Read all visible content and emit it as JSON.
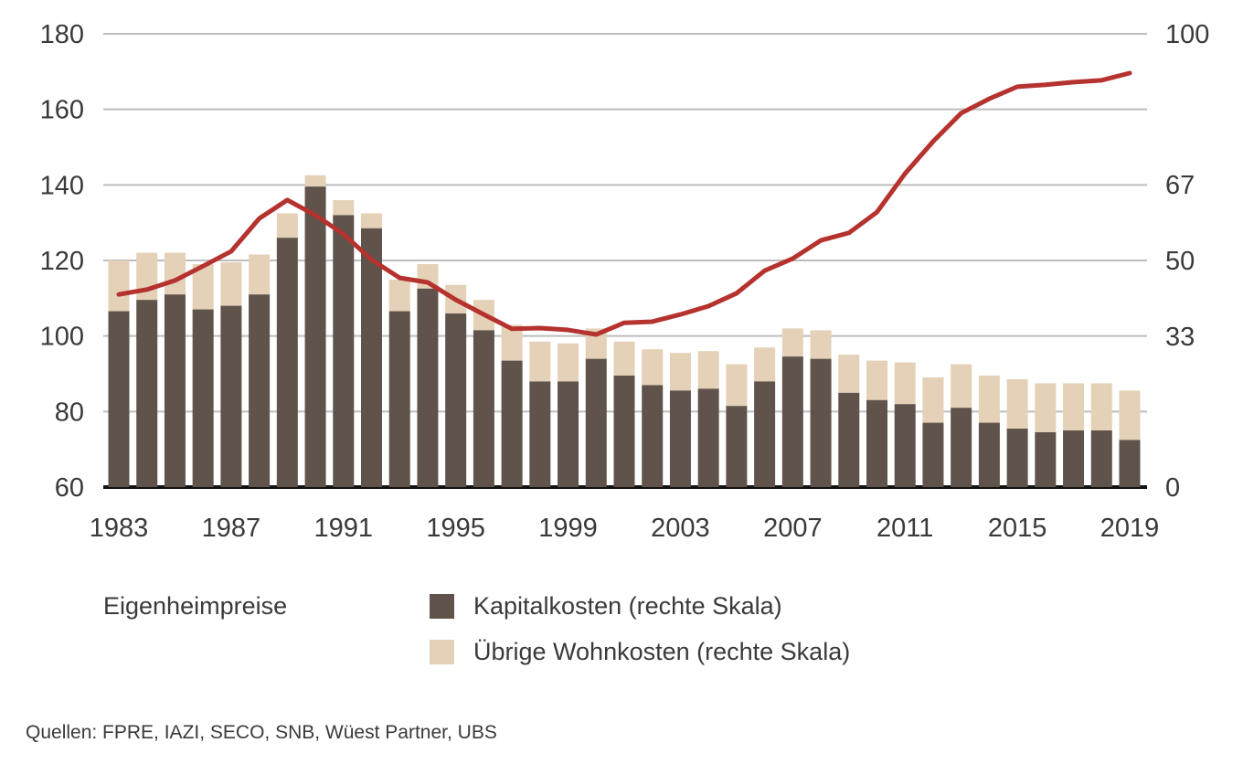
{
  "chart_data": {
    "type": "bar+line",
    "categories": [
      1983,
      1984,
      1985,
      1986,
      1987,
      1988,
      1989,
      1990,
      1991,
      1992,
      1993,
      1994,
      1995,
      1996,
      1997,
      1998,
      1999,
      2000,
      2001,
      2002,
      2003,
      2004,
      2005,
      2006,
      2007,
      2008,
      2009,
      2010,
      2011,
      2012,
      2013,
      2014,
      2015,
      2016,
      2017,
      2018,
      2019
    ],
    "x_tick_labels": [
      "1983",
      "1987",
      "1991",
      "1995",
      "1999",
      "2003",
      "2007",
      "2011",
      "2015",
      "2019"
    ],
    "left_axis": {
      "ylim": [
        60,
        180
      ],
      "ticks": [
        "60",
        "80",
        "100",
        "120",
        "140",
        "160",
        "180"
      ]
    },
    "right_axis": {
      "ylim": [
        0,
        100
      ],
      "ticks": [
        {
          "value": 0,
          "label": "0"
        },
        {
          "value": 33.3,
          "label": "33"
        },
        {
          "value": 50,
          "label": "50"
        },
        {
          "value": 66.7,
          "label": "67"
        },
        {
          "value": 100,
          "label": "100"
        }
      ]
    },
    "grid": true,
    "series": [
      {
        "name": "Eigenheimpreise",
        "type": "line",
        "axis": "left",
        "color": "#b5322e",
        "values": [
          111,
          112.3,
          114.7,
          118.5,
          122.4,
          131.1,
          136,
          132,
          127,
          120.2,
          115.4,
          114.2,
          109.6,
          105.7,
          101.9,
          102.1,
          101.6,
          100.4,
          103.5,
          103.8,
          105.7,
          107.9,
          111.3,
          117.3,
          120.5,
          125.3,
          127.3,
          132.8,
          143,
          151.5,
          159,
          162.8,
          166,
          166.5,
          167.2,
          167.7,
          169.6
        ]
      },
      {
        "name": "Kapitalkosten (rechte Skala)",
        "type": "bar",
        "stack": "a",
        "axis": "right",
        "color": "#5f534b",
        "values": [
          38.8,
          41.3,
          42.5,
          39.2,
          40.0,
          42.5,
          55.0,
          66.3,
          60.0,
          57.1,
          38.8,
          43.8,
          38.3,
          34.6,
          27.9,
          23.3,
          23.3,
          28.3,
          24.6,
          22.5,
          21.3,
          21.7,
          17.9,
          23.3,
          28.8,
          28.3,
          20.8,
          19.2,
          18.3,
          14.2,
          17.5,
          14.2,
          12.9,
          12.1,
          12.5,
          12.5,
          10.4
        ]
      },
      {
        "name": "Übrige Wohnkosten (rechte Skala)",
        "type": "bar",
        "stack": "a",
        "axis": "right",
        "color": "#e4d1b7",
        "values": [
          11.2,
          10.4,
          9.2,
          10.0,
          9.6,
          8.8,
          5.4,
          2.5,
          3.3,
          3.3,
          7.0,
          5.4,
          6.3,
          6.7,
          7.9,
          8.8,
          8.4,
          6.7,
          7.5,
          7.9,
          8.3,
          8.3,
          9.2,
          7.5,
          6.2,
          6.3,
          8.4,
          8.7,
          9.2,
          10.0,
          9.6,
          10.4,
          10.9,
          10.8,
          10.4,
          10.4,
          10.9
        ]
      }
    ],
    "legend": [
      "Eigenheimpreise",
      "Kapitalkosten (rechte Skala)",
      "Übrige Wohnkosten (rechte Skala)"
    ],
    "legend_position": "bottom",
    "source": "Quellen: FPRE, IAZI, SECO, SNB, Wüest Partner, UBS"
  }
}
